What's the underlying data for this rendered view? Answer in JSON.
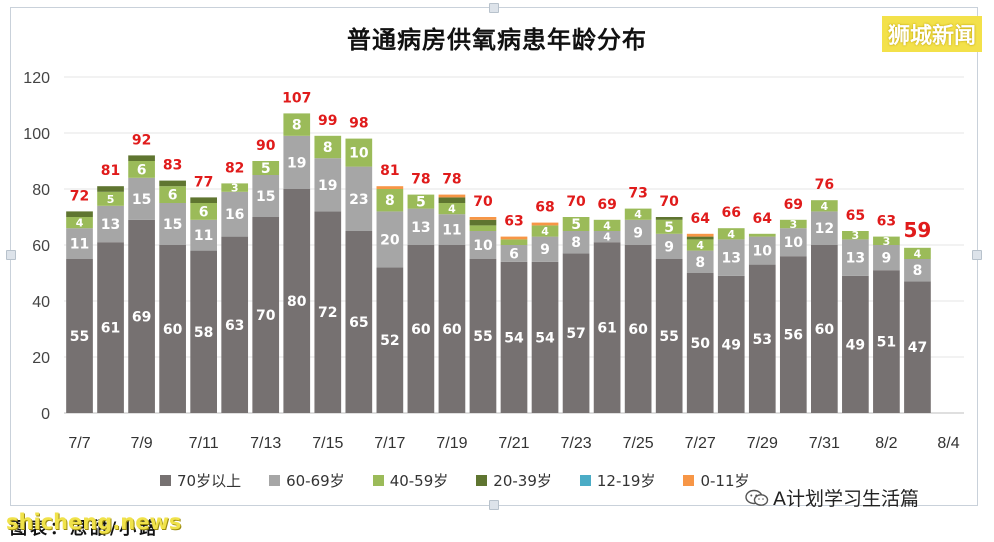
{
  "title": "普通病房供氧病患年龄分布",
  "logo_text": "狮城新闻",
  "footer_note": "图表：思甜/小路",
  "watermark": "shicheng.news",
  "wechat_account": "A计划学习生活篇",
  "chart_data": {
    "type": "bar",
    "stacked": true,
    "title": "普通病房供氧病患年龄分布",
    "ylim": [
      0,
      120
    ],
    "yticks": [
      "0",
      "20",
      "40",
      "60",
      "80",
      "100",
      "120"
    ],
    "categories": [
      "7/7",
      "7/8",
      "7/9",
      "7/10",
      "7/11",
      "7/12",
      "7/13",
      "7/14",
      "7/15",
      "7/16",
      "7/17",
      "7/18",
      "7/19",
      "7/20",
      "7/21",
      "7/22",
      "7/23",
      "7/24",
      "7/25",
      "7/26",
      "7/27",
      "7/28",
      "7/29",
      "7/30",
      "7/31",
      "8/1",
      "8/2",
      "8/3",
      "8/4"
    ],
    "xtick_labels": [
      "7/7",
      "",
      "7/9",
      "",
      "7/11",
      "",
      "7/13",
      "",
      "7/15",
      "",
      "7/17",
      "",
      "7/19",
      "",
      "7/21",
      "",
      "7/23",
      "",
      "7/25",
      "",
      "7/27",
      "",
      "7/29",
      "",
      "7/31",
      "",
      "8/2",
      "",
      "8/4"
    ],
    "totals": [
      72,
      81,
      92,
      83,
      77,
      82,
      90,
      107,
      99,
      98,
      81,
      78,
      78,
      70,
      63,
      68,
      70,
      69,
      73,
      70,
      64,
      66,
      64,
      69,
      76,
      65,
      63,
      59,
      null
    ],
    "legend_position": "bottom",
    "grid": "horizontal",
    "series": [
      {
        "name": "70岁以上",
        "color": "#767171",
        "label_color": "#ffffff",
        "values": [
          55,
          61,
          69,
          60,
          58,
          63,
          70,
          80,
          72,
          65,
          52,
          60,
          60,
          55,
          54,
          54,
          57,
          61,
          60,
          55,
          50,
          49,
          53,
          56,
          60,
          49,
          51,
          47,
          null
        ]
      },
      {
        "name": "60-69岁",
        "color": "#a6a6a6",
        "label_color": "#ffffff",
        "values": [
          11,
          13,
          15,
          15,
          11,
          16,
          15,
          19,
          19,
          23,
          20,
          13,
          11,
          10,
          6,
          9,
          8,
          4,
          9,
          9,
          8,
          13,
          10,
          10,
          12,
          13,
          9,
          8,
          null
        ]
      },
      {
        "name": "40-59岁",
        "color": "#9bbb59",
        "label_color": "#ffffff",
        "values": [
          4,
          5,
          6,
          6,
          6,
          3,
          5,
          8,
          8,
          10,
          8,
          5,
          4,
          2,
          2,
          4,
          5,
          4,
          4,
          5,
          4,
          4,
          1,
          3,
          4,
          3,
          3,
          4,
          null
        ]
      },
      {
        "name": "20-39岁",
        "color": "#5f7530",
        "label_color": "#ffffff",
        "values": [
          2,
          2,
          2,
          2,
          2,
          0,
          0,
          0,
          0,
          0,
          0,
          0,
          2,
          2,
          0,
          0,
          0,
          0,
          0,
          1,
          1,
          0,
          0,
          0,
          0,
          0,
          0,
          0,
          null
        ]
      },
      {
        "name": "12-19岁",
        "color": "#4bacc6",
        "label_color": "#ffffff",
        "values": [
          0,
          0,
          0,
          0,
          0,
          0,
          0,
          0,
          0,
          0,
          0,
          0,
          0,
          0,
          0,
          0,
          0,
          0,
          0,
          0,
          0,
          0,
          0,
          0,
          0,
          0,
          0,
          0,
          null
        ]
      },
      {
        "name": "0-11岁",
        "color": "#f79646",
        "label_color": "#ffffff",
        "values": [
          0,
          0,
          0,
          0,
          0,
          0,
          0,
          0,
          0,
          0,
          1,
          0,
          1,
          1,
          1,
          1,
          0,
          0,
          0,
          0,
          1,
          0,
          0,
          0,
          0,
          0,
          0,
          0,
          null
        ]
      }
    ],
    "total_label_color": "#e01b1b"
  }
}
